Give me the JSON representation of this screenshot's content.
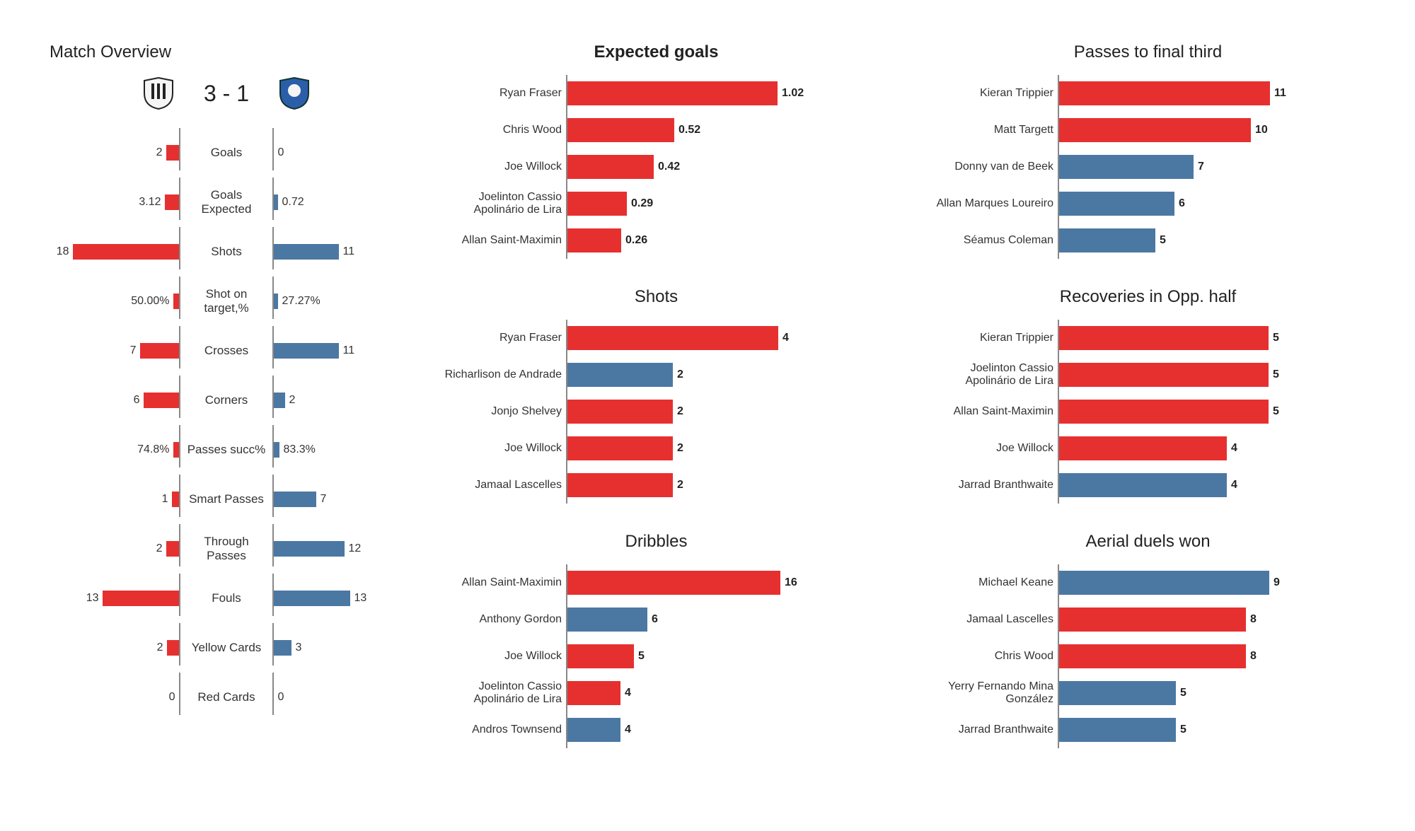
{
  "colors": {
    "home": "#e63030",
    "away": "#4b78a3",
    "text": "#333333",
    "axis": "#888888"
  },
  "overview": {
    "title": "Match Overview",
    "score": "3 - 1",
    "barMax": 185,
    "rows": [
      {
        "label": "Goals",
        "lVal": "2",
        "rVal": "0",
        "lLen": 18,
        "rLen": 0
      },
      {
        "label": "Goals Expected",
        "lVal": "3.12",
        "rVal": "0.72",
        "lLen": 20,
        "rLen": 6
      },
      {
        "label": "Shots",
        "lVal": "18",
        "rVal": "11",
        "lLen": 150,
        "rLen": 92
      },
      {
        "label": "Shot on target,%",
        "lVal": "50.00%",
        "rVal": "27.27%",
        "lLen": 8,
        "rLen": 6
      },
      {
        "label": "Crosses",
        "lVal": "7",
        "rVal": "11",
        "lLen": 55,
        "rLen": 92
      },
      {
        "label": "Corners",
        "lVal": "6",
        "rVal": "2",
        "lLen": 50,
        "rLen": 16
      },
      {
        "label": "Passes succ%",
        "lVal": "74.8%",
        "rVal": "83.3%",
        "lLen": 8,
        "rLen": 8
      },
      {
        "label": "Smart Passes",
        "lVal": "1",
        "rVal": "7",
        "lLen": 10,
        "rLen": 60
      },
      {
        "label": "Through Passes",
        "lVal": "2",
        "rVal": "12",
        "lLen": 18,
        "rLen": 100
      },
      {
        "label": "Fouls",
        "lVal": "13",
        "rVal": "13",
        "lLen": 108,
        "rLen": 108
      },
      {
        "label": "Yellow Cards",
        "lVal": "2",
        "rVal": "3",
        "lLen": 17,
        "rLen": 25
      },
      {
        "label": "Red Cards",
        "lVal": "0",
        "rVal": "0",
        "lLen": 0,
        "rLen": 0
      }
    ]
  },
  "stats": {
    "barMax": 320,
    "col1": [
      {
        "title": "Expected goals",
        "titleBold": true,
        "valBold": true,
        "max": 1.1,
        "rows": [
          {
            "name": "Ryan Fraser",
            "val": "1.02",
            "num": 1.02,
            "team": "home"
          },
          {
            "name": "Chris Wood",
            "val": "0.52",
            "num": 0.52,
            "team": "home"
          },
          {
            "name": "Joe Willock",
            "val": "0.42",
            "num": 0.42,
            "team": "home"
          },
          {
            "name": "Joelinton Cassio Apolinário de Lira",
            "val": "0.29",
            "num": 0.29,
            "team": "home"
          },
          {
            "name": "Allan Saint-Maximin",
            "val": "0.26",
            "num": 0.26,
            "team": "home"
          }
        ]
      },
      {
        "title": "Shots",
        "titleBold": false,
        "valBold": true,
        "max": 4.3,
        "rows": [
          {
            "name": "Ryan Fraser",
            "val": "4",
            "num": 4,
            "team": "home"
          },
          {
            "name": "Richarlison de Andrade",
            "val": "2",
            "num": 2,
            "team": "away"
          },
          {
            "name": "Jonjo Shelvey",
            "val": "2",
            "num": 2,
            "team": "home"
          },
          {
            "name": "Joe Willock",
            "val": "2",
            "num": 2,
            "team": "home"
          },
          {
            "name": "Jamaal Lascelles",
            "val": "2",
            "num": 2,
            "team": "home"
          }
        ]
      },
      {
        "title": "Dribbles",
        "titleBold": false,
        "valBold": true,
        "max": 17,
        "rows": [
          {
            "name": "Allan Saint-Maximin",
            "val": "16",
            "num": 16,
            "team": "home"
          },
          {
            "name": "Anthony Gordon",
            "val": "6",
            "num": 6,
            "team": "away"
          },
          {
            "name": "Joe Willock",
            "val": "5",
            "num": 5,
            "team": "home"
          },
          {
            "name": "Joelinton Cassio Apolinário de Lira",
            "val": "4",
            "num": 4,
            "team": "home"
          },
          {
            "name": "Andros Townsend",
            "val": "4",
            "num": 4,
            "team": "away"
          }
        ]
      }
    ],
    "col2": [
      {
        "title": "Passes to final third",
        "titleBold": false,
        "valBold": true,
        "max": 11.8,
        "rows": [
          {
            "name": "Kieran Trippier",
            "val": "11",
            "num": 11,
            "team": "home"
          },
          {
            "name": "Matt Targett",
            "val": "10",
            "num": 10,
            "team": "home"
          },
          {
            "name": "Donny van de Beek",
            "val": "7",
            "num": 7,
            "team": "away"
          },
          {
            "name": "Allan Marques Loureiro",
            "val": "6",
            "num": 6,
            "team": "away"
          },
          {
            "name": "Séamus Coleman",
            "val": "5",
            "num": 5,
            "team": "away"
          }
        ]
      },
      {
        "title": "Recoveries in Opp. half",
        "titleBold": false,
        "valBold": true,
        "max": 5.4,
        "rows": [
          {
            "name": "Kieran Trippier",
            "val": "5",
            "num": 5,
            "team": "home"
          },
          {
            "name": "Joelinton Cassio Apolinário de Lira",
            "val": "5",
            "num": 5,
            "team": "home"
          },
          {
            "name": "Allan Saint-Maximin",
            "val": "5",
            "num": 5,
            "team": "home"
          },
          {
            "name": "Joe Willock",
            "val": "4",
            "num": 4,
            "team": "home"
          },
          {
            "name": "Jarrad Branthwaite",
            "val": "4",
            "num": 4,
            "team": "away"
          }
        ]
      },
      {
        "title": "Aerial duels won",
        "titleBold": false,
        "valBold": true,
        "max": 9.7,
        "rows": [
          {
            "name": "Michael Keane",
            "val": "9",
            "num": 9,
            "team": "away"
          },
          {
            "name": "Jamaal Lascelles",
            "val": "8",
            "num": 8,
            "team": "home"
          },
          {
            "name": "Chris Wood",
            "val": "8",
            "num": 8,
            "team": "home"
          },
          {
            "name": "Yerry Fernando Mina González",
            "val": "5",
            "num": 5,
            "team": "away"
          },
          {
            "name": "Jarrad Branthwaite",
            "val": "5",
            "num": 5,
            "team": "away"
          }
        ]
      }
    ]
  }
}
